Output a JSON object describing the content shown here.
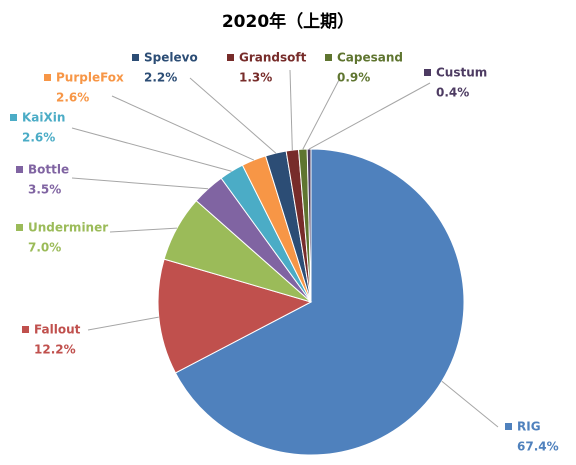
{
  "chart_data": {
    "type": "pie",
    "title": "2020年（上期）",
    "categories": [
      "RIG",
      "Fallout",
      "Underminer",
      "Bottle",
      "KaiXin",
      "PurpleFox",
      "Spelevo",
      "Grandsoft",
      "Capesand",
      "Custum"
    ],
    "values": [
      67.4,
      12.2,
      7.0,
      3.5,
      2.6,
      2.6,
      2.2,
      1.3,
      0.9,
      0.4
    ],
    "value_labels": [
      "67.4%",
      "12.2%",
      "7.0%",
      "3.5%",
      "2.6%",
      "2.6%",
      "2.2%",
      "1.3%",
      "0.9%",
      "0.4%"
    ],
    "colors": [
      "#4f81bd",
      "#c0504d",
      "#9bbb59",
      "#8064a2",
      "#4bacc6",
      "#f79646",
      "#2c4d75",
      "#772c2a",
      "#5f7530",
      "#4d3b62"
    ]
  }
}
